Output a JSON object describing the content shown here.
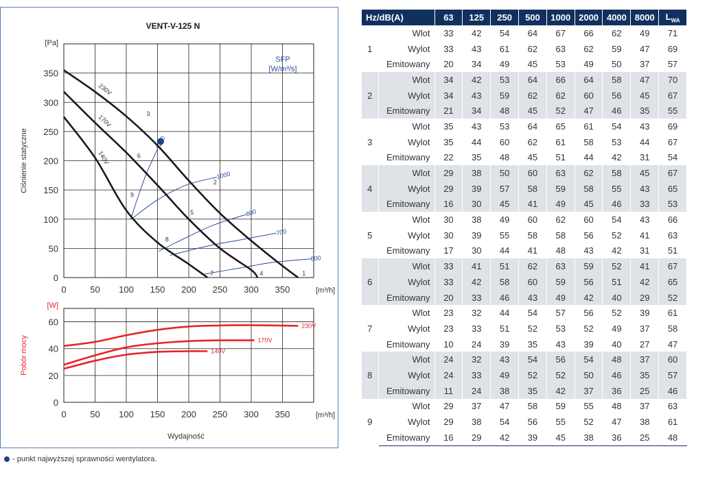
{
  "chart_data": [
    {
      "type": "line",
      "title": "VENT-V-125 N",
      "ylabel": "Ciśnienie statyczne",
      "xlabel": "",
      "y_unit": "[Pa]",
      "x_unit": "[m³/h]",
      "x_ticks": [
        "0",
        "50",
        "100",
        "150",
        "200",
        "250",
        "300",
        "350"
      ],
      "y_ticks": [
        "0",
        "50",
        "100",
        "150",
        "200",
        "250",
        "300",
        "350"
      ],
      "xlim": [
        0,
        400
      ],
      "ylim": [
        0,
        400
      ],
      "grid": true,
      "series": [
        {
          "name": "230V",
          "x": [
            0,
            50,
            100,
            150,
            200,
            250,
            300,
            350,
            375
          ],
          "y": [
            355,
            318,
            276,
            226,
            166,
            110,
            63,
            20,
            0
          ]
        },
        {
          "name": "170V",
          "x": [
            0,
            50,
            100,
            150,
            200,
            250,
            300,
            310
          ],
          "y": [
            318,
            265,
            214,
            158,
            100,
            50,
            13,
            0
          ]
        },
        {
          "name": "140V",
          "x": [
            0,
            50,
            100,
            150,
            200,
            230
          ],
          "y": [
            275,
            205,
            115,
            60,
            23,
            0
          ]
        }
      ],
      "sfp_curves": {
        "label": "SFP",
        "unit": "[W/m³/s]",
        "lines": [
          {
            "name": "1200",
            "x": [
              107,
              120,
              133,
              150
            ],
            "y": [
              100,
              142,
              180,
              220
            ]
          },
          {
            "name": "1000",
            "x": [
              108,
              150,
              195,
              245
            ],
            "y": [
              100,
              133,
              158,
              172
            ]
          },
          {
            "name": "800",
            "x": [
              152,
              195,
              240,
              292
            ],
            "y": [
              45,
              68,
              90,
              108
            ]
          },
          {
            "name": "700",
            "x": [
              170,
              230,
              290,
              340
            ],
            "y": [
              38,
              54,
              66,
              76
            ]
          },
          {
            "name": "600",
            "x": [
              220,
              280,
              335,
              395
            ],
            "y": [
              5,
              16,
              26,
              32
            ]
          }
        ]
      },
      "points": [
        {
          "name": "1",
          "x": 375,
          "y": 0
        },
        {
          "name": "2",
          "x": 235,
          "y": 155
        },
        {
          "name": "3",
          "x": 128,
          "y": 272
        },
        {
          "name": "4",
          "x": 307,
          "y": 0
        },
        {
          "name": "5",
          "x": 198,
          "y": 103
        },
        {
          "name": "6",
          "x": 113,
          "y": 200
        },
        {
          "name": "7",
          "x": 230,
          "y": 0
        },
        {
          "name": "8",
          "x": 158,
          "y": 57
        },
        {
          "name": "9",
          "x": 102,
          "y": 133
        }
      ],
      "optimum_point": {
        "x": 155,
        "y": 233,
        "color": "#1f3f8f"
      }
    },
    {
      "type": "line",
      "ylabel": "Pobór mocy",
      "xlabel": "Wydajność",
      "y_unit": "[W]",
      "x_unit": "[m³/h]",
      "x_ticks": [
        "0",
        "50",
        "100",
        "150",
        "200",
        "250",
        "300",
        "350"
      ],
      "y_ticks": [
        "0",
        "20",
        "40",
        "60"
      ],
      "xlim": [
        0,
        400
      ],
      "ylim": [
        0,
        70
      ],
      "grid": true,
      "series": [
        {
          "name": "230V",
          "x": [
            0,
            50,
            100,
            150,
            200,
            250,
            300,
            375
          ],
          "y": [
            42,
            45,
            50,
            54,
            56.5,
            57.3,
            57.5,
            57
          ]
        },
        {
          "name": "170V",
          "x": [
            0,
            50,
            100,
            150,
            200,
            250,
            305
          ],
          "y": [
            28,
            35,
            41,
            44,
            45.6,
            46.2,
            46.2
          ]
        },
        {
          "name": "140V",
          "x": [
            0,
            50,
            100,
            150,
            200,
            230
          ],
          "y": [
            25,
            31,
            35.5,
            37.6,
            38.1,
            38.1
          ]
        }
      ]
    }
  ],
  "colors": {
    "pressure": "#1a1a1a",
    "sfp": "#2a4aa0",
    "power": "#e8232a",
    "header": "#10305e",
    "band": "#dfe3e8",
    "dot": "#1f3f8f"
  },
  "table": {
    "header_first": "Hz/dB(A)",
    "header_freqs": [
      "63",
      "125",
      "250",
      "500",
      "1000",
      "2000",
      "4000",
      "8000"
    ],
    "header_lw": "L",
    "header_lw_sub": "WA",
    "groups": [
      {
        "id": "1",
        "rows": [
          {
            "label": "Wlot",
            "values": [
              "33",
              "42",
              "54",
              "64",
              "67",
              "66",
              "62",
              "49",
              "71"
            ]
          },
          {
            "label": "Wylot",
            "values": [
              "33",
              "43",
              "61",
              "62",
              "63",
              "62",
              "59",
              "47",
              "69"
            ]
          },
          {
            "label": "Emitowany",
            "values": [
              "20",
              "34",
              "49",
              "45",
              "53",
              "49",
              "50",
              "37",
              "57"
            ]
          }
        ]
      },
      {
        "id": "2",
        "rows": [
          {
            "label": "Wlot",
            "values": [
              "34",
              "42",
              "53",
              "64",
              "66",
              "64",
              "58",
              "47",
              "70"
            ]
          },
          {
            "label": "Wylot",
            "values": [
              "34",
              "43",
              "59",
              "62",
              "62",
              "60",
              "56",
              "45",
              "67"
            ]
          },
          {
            "label": "Emitowany",
            "values": [
              "21",
              "34",
              "48",
              "45",
              "52",
              "47",
              "46",
              "35",
              "55"
            ]
          }
        ]
      },
      {
        "id": "3",
        "rows": [
          {
            "label": "Wlot",
            "values": [
              "35",
              "43",
              "53",
              "64",
              "65",
              "61",
              "54",
              "43",
              "69"
            ]
          },
          {
            "label": "Wylot",
            "values": [
              "35",
              "44",
              "60",
              "62",
              "61",
              "58",
              "53",
              "44",
              "67"
            ]
          },
          {
            "label": "Emitowany",
            "values": [
              "22",
              "35",
              "48",
              "45",
              "51",
              "44",
              "42",
              "31",
              "54"
            ]
          }
        ]
      },
      {
        "id": "4",
        "rows": [
          {
            "label": "Wlot",
            "values": [
              "29",
              "38",
              "50",
              "60",
              "63",
              "62",
              "58",
              "45",
              "67"
            ]
          },
          {
            "label": "Wylot",
            "values": [
              "29",
              "39",
              "57",
              "58",
              "59",
              "58",
              "55",
              "43",
              "65"
            ]
          },
          {
            "label": "Emitowany",
            "values": [
              "16",
              "30",
              "45",
              "41",
              "49",
              "45",
              "46",
              "33",
              "53"
            ]
          }
        ]
      },
      {
        "id": "5",
        "rows": [
          {
            "label": "Wlot",
            "values": [
              "30",
              "38",
              "49",
              "60",
              "62",
              "60",
              "54",
              "43",
              "66"
            ]
          },
          {
            "label": "Wylot",
            "values": [
              "30",
              "39",
              "55",
              "58",
              "58",
              "56",
              "52",
              "41",
              "63"
            ]
          },
          {
            "label": "Emitowany",
            "values": [
              "17",
              "30",
              "44",
              "41",
              "48",
              "43",
              "42",
              "31",
              "51"
            ]
          }
        ]
      },
      {
        "id": "6",
        "rows": [
          {
            "label": "Wlot",
            "values": [
              "33",
              "41",
              "51",
              "62",
              "63",
              "59",
              "52",
              "41",
              "67"
            ]
          },
          {
            "label": "Wylot",
            "values": [
              "33",
              "42",
              "58",
              "60",
              "59",
              "56",
              "51",
              "42",
              "65"
            ]
          },
          {
            "label": "Emitowany",
            "values": [
              "20",
              "33",
              "46",
              "43",
              "49",
              "42",
              "40",
              "29",
              "52"
            ]
          }
        ]
      },
      {
        "id": "7",
        "rows": [
          {
            "label": "Wlot",
            "values": [
              "23",
              "32",
              "44",
              "54",
              "57",
              "56",
              "52",
              "39",
              "61"
            ]
          },
          {
            "label": "Wylot",
            "values": [
              "23",
              "33",
              "51",
              "52",
              "53",
              "52",
              "49",
              "37",
              "58"
            ]
          },
          {
            "label": "Emitowany",
            "values": [
              "10",
              "24",
              "39",
              "35",
              "43",
              "39",
              "40",
              "27",
              "47"
            ]
          }
        ]
      },
      {
        "id": "8",
        "rows": [
          {
            "label": "Wlot",
            "values": [
              "24",
              "32",
              "43",
              "54",
              "56",
              "54",
              "48",
              "37",
              "60"
            ]
          },
          {
            "label": "Wylot",
            "values": [
              "24",
              "33",
              "49",
              "52",
              "52",
              "50",
              "46",
              "35",
              "57"
            ]
          },
          {
            "label": "Emitowany",
            "values": [
              "11",
              "24",
              "38",
              "35",
              "42",
              "37",
              "36",
              "25",
              "46"
            ]
          }
        ]
      },
      {
        "id": "9",
        "rows": [
          {
            "label": "Wlot",
            "values": [
              "29",
              "37",
              "47",
              "58",
              "59",
              "55",
              "48",
              "37",
              "63"
            ]
          },
          {
            "label": "Wylot",
            "values": [
              "29",
              "38",
              "54",
              "56",
              "55",
              "52",
              "47",
              "38",
              "61"
            ]
          },
          {
            "label": "Emitowany",
            "values": [
              "16",
              "29",
              "42",
              "39",
              "45",
              "38",
              "36",
              "25",
              "48"
            ]
          }
        ]
      }
    ]
  },
  "footnote": "- punkt najwyższej sprawności wentylatora."
}
